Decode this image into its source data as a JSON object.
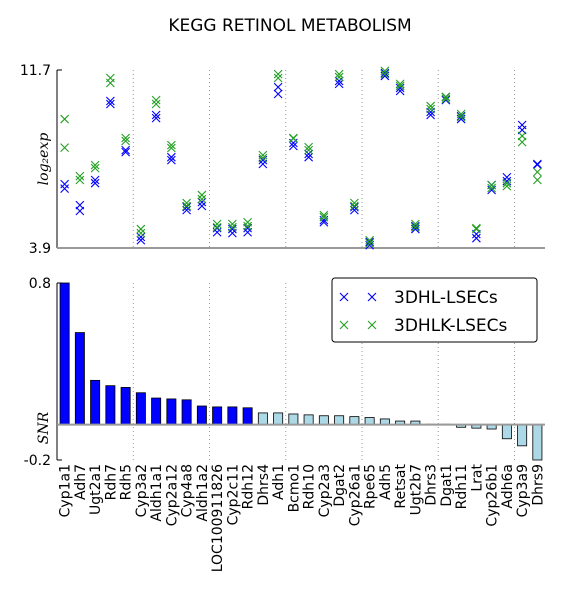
{
  "chart_data": [
    {
      "type": "scatter",
      "title": "KEGG RETINOL METABOLISM",
      "ylabel": "log₂exp",
      "ylim": [
        3.9,
        11.7
      ],
      "yticks": [
        3.9,
        11.7
      ],
      "series": [
        {
          "name": "3DHL-LSECs",
          "color": "#0000ff",
          "values": [
            [
              6.7,
              6.5
            ],
            [
              5.78,
              5.52
            ],
            [
              6.88,
              6.74
            ],
            [
              10.34,
              10.21
            ],
            [
              8.19,
              8.1
            ],
            [
              4.38,
              4.24
            ],
            [
              9.73,
              9.59
            ],
            [
              7.88,
              7.75
            ],
            [
              5.69,
              5.56
            ],
            [
              5.91,
              5.74
            ],
            [
              4.77,
              4.59
            ],
            [
              4.73,
              4.55
            ],
            [
              4.77,
              4.59
            ],
            [
              7.75,
              7.58
            ],
            [
              10.95,
              10.65
            ],
            [
              8.5,
              8.37
            ],
            [
              8.02,
              7.88
            ],
            [
              5.12,
              5.03
            ],
            [
              11.22,
              11.09
            ],
            [
              5.69,
              5.56
            ],
            [
              4.16,
              4.02
            ],
            [
              11.57,
              11.44
            ],
            [
              10.91,
              10.78
            ],
            [
              4.86,
              4.73
            ],
            [
              9.86,
              9.73
            ],
            [
              10.52,
              10.38
            ],
            [
              9.68,
              9.55
            ],
            [
              4.51,
              4.33
            ],
            [
              6.66,
              6.44
            ],
            [
              7.0,
              6.83
            ],
            [
              9.29,
              9.07
            ],
            [
              7.58,
              7.55
            ]
          ]
        },
        {
          "name": "3DHLK-LSECs",
          "color": "#22a022",
          "values": [
            [
              9.55,
              8.3
            ],
            [
              7.05,
              6.88
            ],
            [
              7.53,
              7.4
            ],
            [
              11.35,
              11.13
            ],
            [
              8.72,
              8.59
            ],
            [
              4.73,
              4.55
            ],
            [
              10.38,
              10.21
            ],
            [
              8.41,
              8.28
            ],
            [
              5.87,
              5.74
            ],
            [
              6.22,
              6.04
            ],
            [
              4.95,
              4.81
            ],
            [
              4.95,
              4.81
            ],
            [
              5.03,
              4.86
            ],
            [
              7.97,
              7.84
            ],
            [
              11.52,
              11.35
            ],
            [
              8.72,
              8.7
            ],
            [
              8.32,
              8.19
            ],
            [
              5.34,
              5.25
            ],
            [
              11.52,
              11.39
            ],
            [
              5.87,
              5.74
            ],
            [
              4.24,
              4.11
            ],
            [
              11.66,
              11.52
            ],
            [
              11.09,
              11.0
            ],
            [
              4.95,
              4.81
            ],
            [
              10.12,
              9.99
            ],
            [
              10.52,
              10.43
            ],
            [
              9.77,
              9.64
            ],
            [
              4.77,
              4.73
            ],
            [
              6.66,
              6.53
            ],
            [
              6.74,
              6.61
            ],
            [
              8.81,
              8.54
            ],
            [
              7.23,
              6.88
            ]
          ]
        }
      ]
    },
    {
      "type": "bar",
      "ylabel": "SNR",
      "ylim": [
        -0.2,
        0.8
      ],
      "yticks": [
        -0.2,
        0.8
      ],
      "categories": [
        "Cyp1a1",
        "Adh7",
        "Ugt2a1",
        "Rdh7",
        "Rdh5",
        "Cyp3a2",
        "Aldh1a1",
        "Cyp2a12",
        "Cyp4a8",
        "Aldh1a2",
        "LOC100911826",
        "Cyp2c11",
        "Rdh12",
        "Dhrs4",
        "Adh1",
        "Bcmo1",
        "Rdh10",
        "Cyp2a3",
        "Dgat2",
        "Cyp26a1",
        "Rpe65",
        "Adh5",
        "Retsat",
        "Ugt2b7",
        "Dhrs3",
        "Dgat1",
        "Rdh11",
        "Lrat",
        "Cyp26b1",
        "Adh6a",
        "Cyp3a9",
        "Dhrs9"
      ],
      "values": [
        0.8,
        0.52,
        0.25,
        0.22,
        0.21,
        0.18,
        0.15,
        0.145,
        0.14,
        0.105,
        0.1,
        0.1,
        0.095,
        0.066,
        0.066,
        0.06,
        0.055,
        0.05,
        0.05,
        0.045,
        0.04,
        0.032,
        0.02,
        0.02,
        0.002,
        0.002,
        -0.015,
        -0.02,
        -0.025,
        -0.08,
        -0.12,
        -0.2
      ],
      "colors": [
        "#0000ff",
        "#0000ff",
        "#0000ff",
        "#0000ff",
        "#0000ff",
        "#0000ff",
        "#0000ff",
        "#0000ff",
        "#0000ff",
        "#0000ff",
        "#0000ff",
        "#0000ff",
        "#0000ff",
        "#add8e6",
        "#add8e6",
        "#add8e6",
        "#add8e6",
        "#add8e6",
        "#add8e6",
        "#add8e6",
        "#add8e6",
        "#add8e6",
        "#add8e6",
        "#add8e6",
        "#add8e6",
        "#add8e6",
        "#add8e6",
        "#add8e6",
        "#add8e6",
        "#add8e6",
        "#add8e6",
        "#add8e6"
      ]
    }
  ]
}
